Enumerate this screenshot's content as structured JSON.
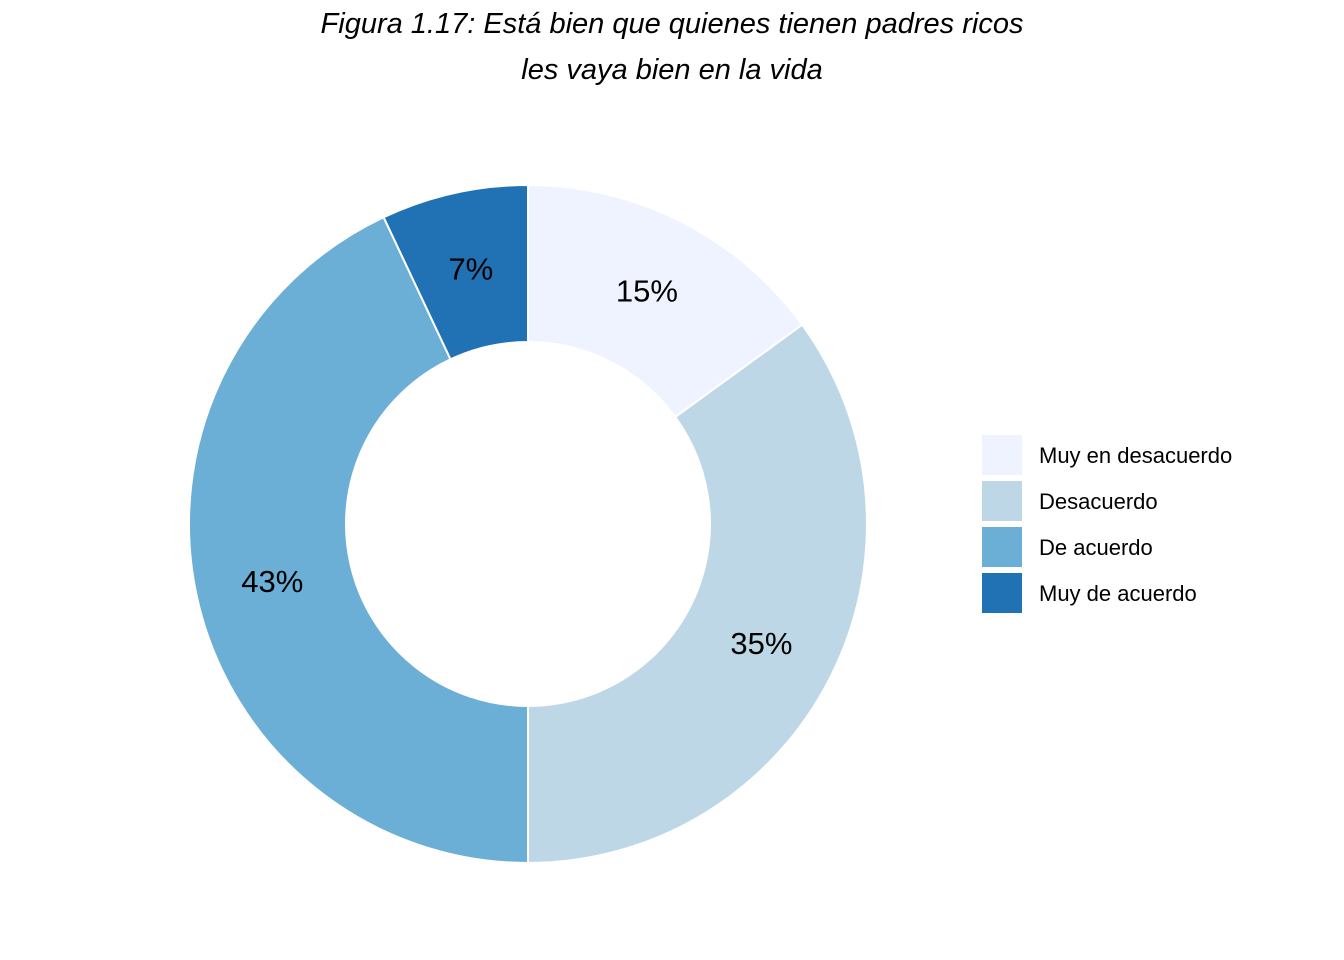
{
  "chart_data": {
    "type": "pie",
    "variant": "donut",
    "title_lines": [
      "Figura 1.17: Está bien que quienes tienen padres ricos",
      "les vaya bien en la vida"
    ],
    "start": "12 o'clock",
    "direction": "clockwise",
    "legend_position": "right",
    "slices": [
      {
        "name": "Muy en desacuerdo",
        "value": 15,
        "label": "15%",
        "color": "#EFF3FF"
      },
      {
        "name": "Desacuerdo",
        "value": 35,
        "label": "35%",
        "color": "#BDD7E7"
      },
      {
        "name": "De acuerdo",
        "value": 43,
        "label": "43%",
        "color": "#6BAED6"
      },
      {
        "name": "Muy de acuerdo",
        "value": 7,
        "label": "7%",
        "color": "#2171B5"
      }
    ]
  }
}
